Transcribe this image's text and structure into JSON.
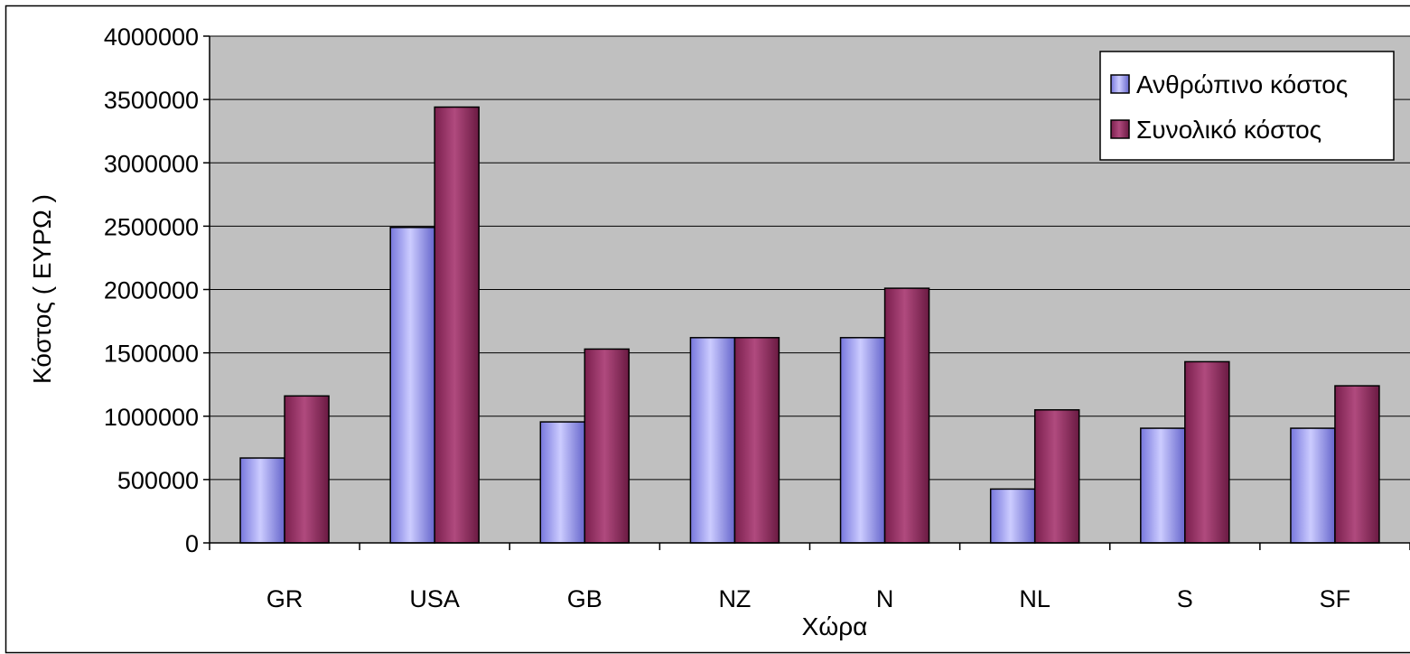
{
  "colors": {
    "plot_background": "#c0c0c0",
    "series_human": "#9999ff",
    "series_total": "#993366",
    "gridline": "#000000",
    "border": "#000000"
  },
  "chart_data": {
    "type": "bar",
    "title": "",
    "xlabel": "Χώρα",
    "ylabel": "Κόστος ( ΕΥΡΩ )",
    "categories": [
      "GR",
      "USA",
      "GB",
      "NZ",
      "N",
      "NL",
      "S",
      "SF"
    ],
    "series": [
      {
        "name": "Ανθρώπινο κόστος",
        "values": [
          670000,
          2490000,
          955000,
          1620000,
          1620000,
          425000,
          905000,
          905000
        ]
      },
      {
        "name": "Συνολικό κόστος",
        "values": [
          1160000,
          3440000,
          1530000,
          1620000,
          2010000,
          1050000,
          1430000,
          1240000
        ]
      }
    ],
    "ylim": [
      0,
      4000000
    ],
    "yticks": [
      "0",
      "500000",
      "1000000",
      "1500000",
      "2000000",
      "2500000",
      "3000000",
      "3500000",
      "4000000"
    ],
    "grid": true,
    "legend_position": "top-right"
  }
}
